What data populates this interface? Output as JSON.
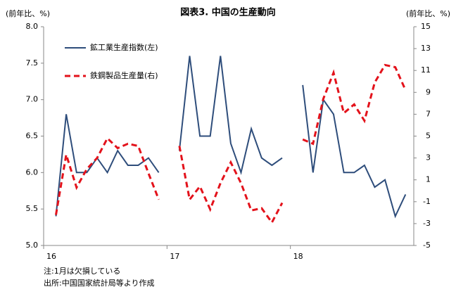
{
  "chart_data": {
    "type": "line",
    "title": "図表3. 中国の生産動向",
    "y_label": "(前年比、%)",
    "y2_label": "(前年比、%)",
    "categories": [
      "16",
      null,
      null,
      null,
      null,
      null,
      null,
      null,
      null,
      null,
      null,
      null,
      "17",
      null,
      null,
      null,
      null,
      null,
      null,
      null,
      null,
      null,
      null,
      null,
      "18",
      null,
      null,
      null,
      null,
      null,
      null,
      null,
      null,
      null,
      null,
      null
    ],
    "series": [
      {
        "name": "鉱工業生産指数(左)",
        "color": "#2e4d7b",
        "dash": false,
        "values": [
          null,
          5.4,
          6.8,
          6.0,
          6.0,
          6.2,
          6.0,
          6.3,
          6.1,
          6.1,
          6.2,
          6.0,
          null,
          6.3,
          7.6,
          6.5,
          6.5,
          7.6,
          6.4,
          6.0,
          6.6,
          6.2,
          6.1,
          6.2,
          null,
          7.2,
          6.0,
          7.0,
          6.8,
          6.0,
          6.0,
          6.1,
          5.8,
          5.9,
          5.4,
          5.7
        ]
      },
      {
        "name": "鉄鋼製品生産量(右)",
        "color": "#e3121b",
        "dash": true,
        "axis": "y2",
        "values": [
          null,
          -2.2,
          3.3,
          0.3,
          2.0,
          3.0,
          4.8,
          3.9,
          4.3,
          4.1,
          1.6,
          -0.8,
          null,
          4.1,
          -0.8,
          0.4,
          -1.7,
          0.7,
          2.6,
          0.7,
          -1.8,
          -1.6,
          -2.9,
          -1.1,
          null,
          4.7,
          4.3,
          8.4,
          10.8,
          7.1,
          7.9,
          6.4,
          9.9,
          11.5,
          11.3,
          9.2
        ]
      }
    ],
    "ylim": [
      5,
      8
    ],
    "yticks": [
      {
        "value": 5,
        "label": "5.0"
      },
      {
        "value": 5.5,
        "label": "5.5"
      },
      {
        "value": 6,
        "label": "6.0"
      },
      {
        "value": 6.5,
        "label": "6.5"
      },
      {
        "value": 7,
        "label": "7.0"
      },
      {
        "value": 7.5,
        "label": "7.5"
      },
      {
        "value": 8,
        "label": "8.0"
      }
    ],
    "y2lim": [
      -5,
      15
    ],
    "y2ticks": [
      -5,
      -3,
      -1,
      1,
      3,
      5,
      7,
      9,
      11,
      13,
      15
    ],
    "grid": false,
    "legend": "upper left",
    "notes": [
      "注:1月は欠損している",
      "出所:中国国家統計局等より作成"
    ]
  }
}
